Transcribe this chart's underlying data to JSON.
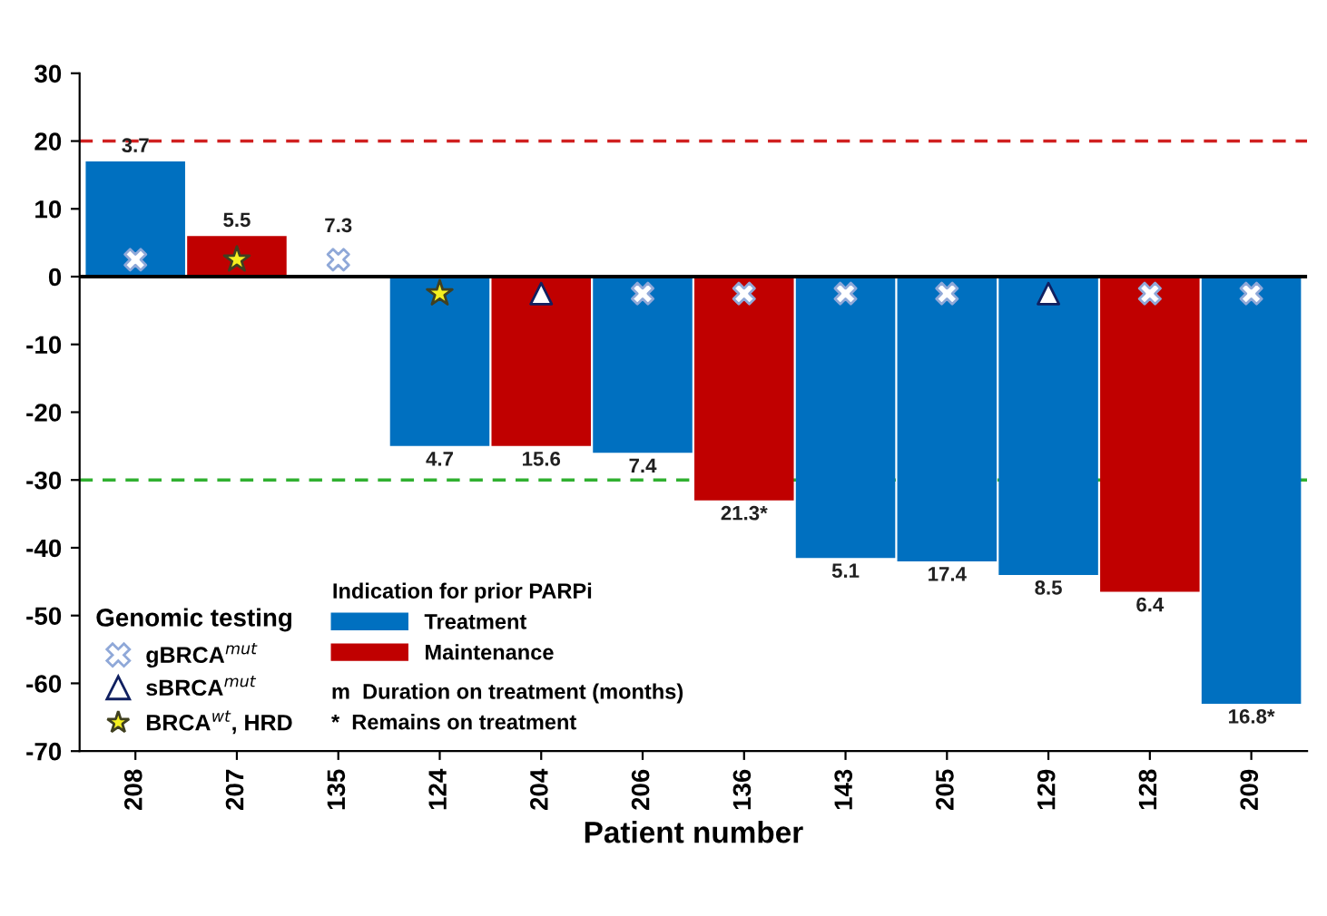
{
  "chart_data": {
    "type": "bar",
    "xlabel": "Patient number",
    "legend_title": "Indication for prior PARPi",
    "categories": [
      "208",
      "207",
      "135",
      "124",
      "204",
      "206",
      "136",
      "143",
      "205",
      "129",
      "128",
      "209"
    ],
    "series": [
      {
        "name": "Treatment",
        "color": "#0070c0",
        "values": [
          17,
          null,
          0,
          -25,
          null,
          -26,
          null,
          -41.5,
          -42,
          -44,
          null,
          -63
        ]
      },
      {
        "name": "Maintenance",
        "color": "#c00000",
        "values": [
          null,
          6,
          null,
          null,
          -25,
          null,
          -33,
          null,
          null,
          null,
          -46.5,
          null
        ]
      },
      {
        "name": "gBRCA$^{mut}$",
        "type": "scatter",
        "marker": "cross",
        "color": "#ffffff",
        "x": [
          "208",
          "135",
          "206",
          "136",
          "143",
          "205",
          "128",
          "209"
        ],
        "values": [
          2.5,
          2.5,
          -2.5,
          -2.5,
          -2.5,
          -2.5,
          -2.5,
          -2.5
        ]
      },
      {
        "name": "sBRCA$^{mut}$",
        "type": "scatter",
        "marker": "triangle",
        "color": "#ffffff",
        "x": [
          "204",
          "129"
        ],
        "values": [
          -2.5,
          -2.5
        ]
      },
      {
        "name": "BRCA$^{wt}$, HRD",
        "type": "scatter",
        "marker": "star",
        "color": "#f5f020",
        "x": [
          "207",
          "124"
        ],
        "values": [
          2.5,
          -2.5
        ]
      }
    ],
    "ylim": [
      -70,
      30
    ],
    "yticks": [
      -70,
      -60,
      -50,
      -40,
      -30,
      -20,
      -10,
      0,
      10,
      20,
      30
    ],
    "ref_lines": [
      {
        "axis": "y",
        "value": 20,
        "color": "#d02020",
        "line_style": "dashed"
      },
      {
        "axis": "y",
        "value": -30,
        "color": "#30b030",
        "line_style": "dashed"
      }
    ],
    "annotations": [
      "Genomic testing",
      "m  Duration on treatment (months)",
      "*  Remains on treatment",
      {
        "text": "3.7",
        "x": "208",
        "y": 17
      },
      {
        "text": "5.5",
        "x": "207",
        "y": 6
      },
      {
        "text": "7.3",
        "x": "135",
        "y": 0
      },
      {
        "text": "4.7",
        "x": "124",
        "y": -25
      },
      {
        "text": "15.6",
        "x": "204",
        "y": -25
      },
      {
        "text": "7.4",
        "x": "206",
        "y": -26
      },
      {
        "text": "21.3*",
        "x": "136",
        "y": -33
      },
      {
        "text": "5.1",
        "x": "143",
        "y": -41.5
      },
      {
        "text": "17.4",
        "x": "205",
        "y": -42
      },
      {
        "text": "8.5",
        "x": "129",
        "y": -44
      },
      {
        "text": "6.4",
        "x": "128",
        "y": -46.5
      },
      {
        "text": "16.8*",
        "x": "209",
        "y": -63
      }
    ],
    "legend": "bottom left",
    "grid": false
  }
}
